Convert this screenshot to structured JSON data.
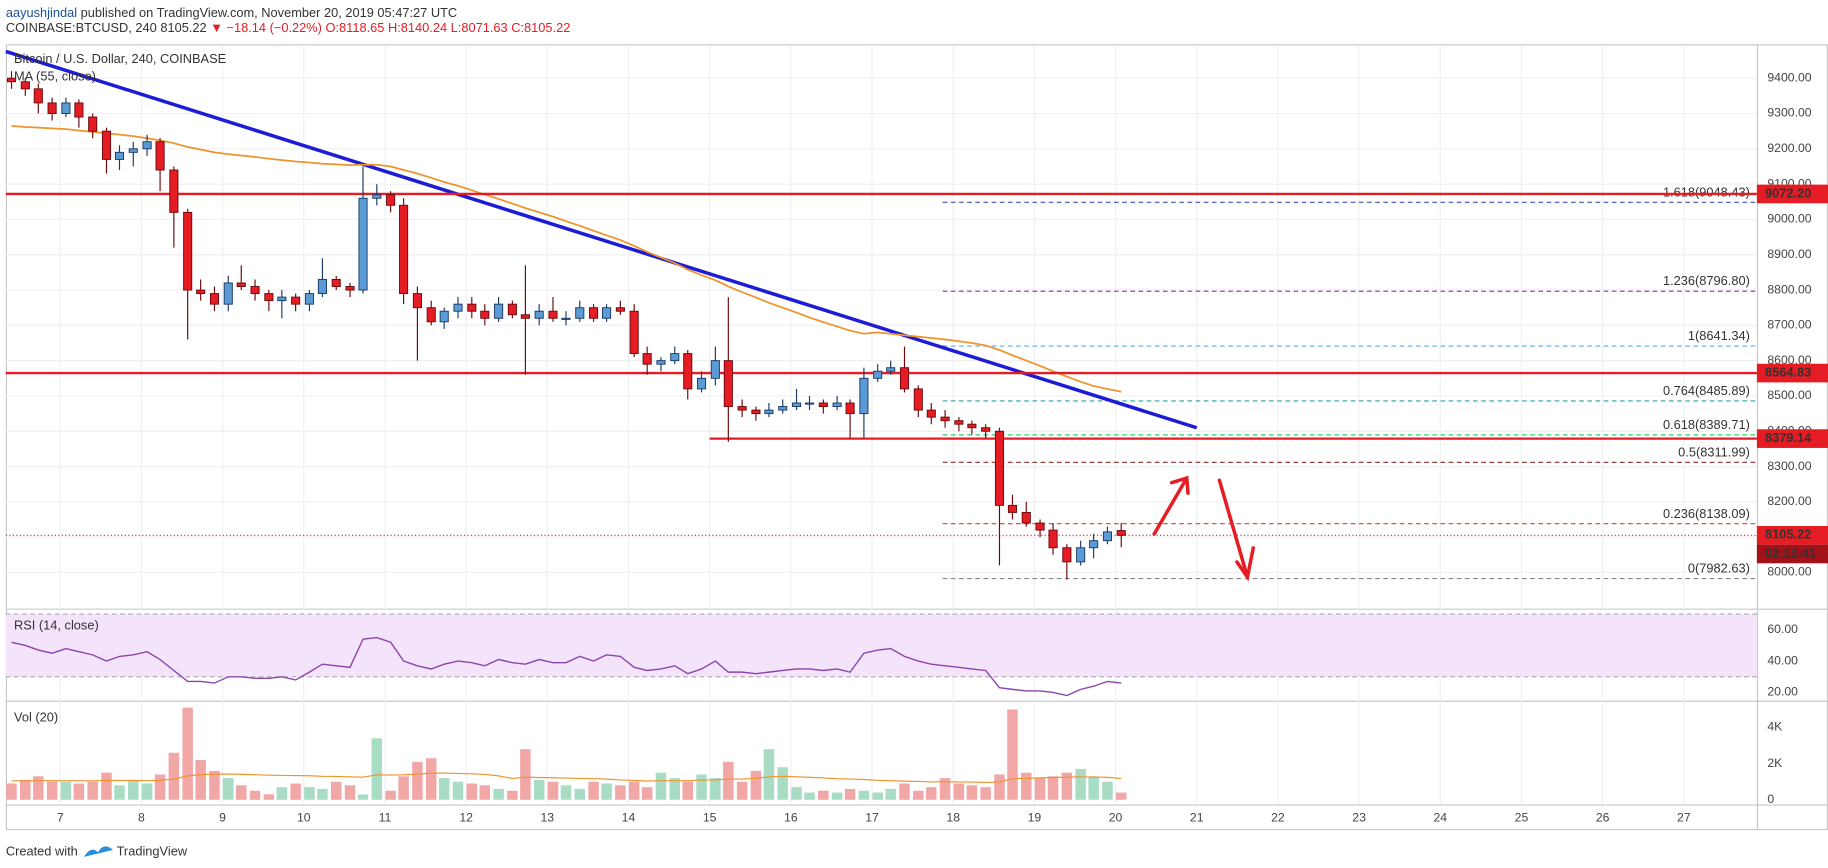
{
  "header": {
    "author": "aayushjindal",
    "published": "published on TradingView.com, November 20, 2019 05:47:27 UTC",
    "symbol": "COINBASE:BTCUSD, 240",
    "price": "8105.22",
    "change": "▼ −18.14 (−0.22%)",
    "ohlc": "O:8118.65 H:8140.24 L:8071.63 C:8105.22"
  },
  "footer": {
    "created": "Created with",
    "brand": "TradingView"
  },
  "chart_data": {
    "type": "candlestick",
    "legend": "Bitcoin / U.S. Dollar, 240, COINBASE",
    "xlim": [
      6.33,
      27.9
    ],
    "xticks": [
      7,
      8,
      9,
      10,
      11,
      12,
      13,
      14,
      15,
      16,
      17,
      18,
      19,
      20,
      21,
      22,
      23,
      24,
      25,
      26,
      27
    ],
    "ylim": [
      7901,
      9496
    ],
    "yticks": [
      {
        "value": 8000,
        "label": "8000.00"
      },
      {
        "value": 8100,
        "label": "8100.00"
      },
      {
        "value": 8200,
        "label": "8200.00"
      },
      {
        "value": 8300,
        "label": "8300.00"
      },
      {
        "value": 8400,
        "label": "8400.00"
      },
      {
        "value": 8500,
        "label": "8500.00"
      },
      {
        "value": 8600,
        "label": "8600.00"
      },
      {
        "value": 8700,
        "label": "8700.00"
      },
      {
        "value": 8800,
        "label": "8800.00"
      },
      {
        "value": 8900,
        "label": "8900.00"
      },
      {
        "value": 9000,
        "label": "9000.00"
      },
      {
        "value": 9100,
        "label": "9100.00"
      },
      {
        "value": 9200,
        "label": "9200.00"
      },
      {
        "value": 9300,
        "label": "9300.00"
      },
      {
        "value": 9400,
        "label": "9400.00"
      }
    ],
    "grid": true,
    "up_color": "#5b9bd5",
    "down_color": "#e51c23",
    "x": [
      6.4,
      6.57,
      6.73,
      6.9,
      7.07,
      7.23,
      7.4,
      7.57,
      7.73,
      7.9,
      8.07,
      8.23,
      8.4,
      8.57,
      8.73,
      8.9,
      9.07,
      9.23,
      9.4,
      9.57,
      9.73,
      9.9,
      10.07,
      10.23,
      10.4,
      10.57,
      10.73,
      10.9,
      11.07,
      11.23,
      11.4,
      11.57,
      11.73,
      11.9,
      12.07,
      12.23,
      12.4,
      12.57,
      12.73,
      12.9,
      13.07,
      13.23,
      13.4,
      13.57,
      13.73,
      13.9,
      14.07,
      14.23,
      14.4,
      14.57,
      14.73,
      14.9,
      15.07,
      15.23,
      15.4,
      15.57,
      15.73,
      15.9,
      16.07,
      16.23,
      16.4,
      16.57,
      16.73,
      16.9,
      17.07,
      17.23,
      17.4,
      17.57,
      17.73,
      17.9,
      18.07,
      18.23,
      18.4,
      18.57,
      18.73,
      18.9,
      19.07,
      19.23,
      19.4,
      19.57,
      19.73,
      19.9,
      20.07
    ],
    "ohlc": [
      [
        9400,
        9420,
        9370,
        9390
      ],
      [
        9390,
        9400,
        9350,
        9370
      ],
      [
        9370,
        9385,
        9300,
        9330
      ],
      [
        9330,
        9345,
        9280,
        9300
      ],
      [
        9300,
        9345,
        9290,
        9330
      ],
      [
        9330,
        9340,
        9260,
        9290
      ],
      [
        9290,
        9300,
        9230,
        9250
      ],
      [
        9250,
        9260,
        9130,
        9170
      ],
      [
        9170,
        9210,
        9140,
        9190
      ],
      [
        9190,
        9220,
        9150,
        9200
      ],
      [
        9200,
        9240,
        9180,
        9220
      ],
      [
        9220,
        9230,
        9080,
        9140
      ],
      [
        9140,
        9150,
        8920,
        9020
      ],
      [
        9020,
        9030,
        8660,
        8800
      ],
      [
        8800,
        8830,
        8770,
        8790
      ],
      [
        8790,
        8810,
        8740,
        8760
      ],
      [
        8760,
        8840,
        8740,
        8820
      ],
      [
        8820,
        8870,
        8800,
        8810
      ],
      [
        8810,
        8830,
        8770,
        8790
      ],
      [
        8790,
        8800,
        8740,
        8770
      ],
      [
        8770,
        8800,
        8720,
        8780
      ],
      [
        8780,
        8790,
        8740,
        8760
      ],
      [
        8760,
        8800,
        8740,
        8790
      ],
      [
        8790,
        8890,
        8780,
        8830
      ],
      [
        8830,
        8840,
        8800,
        8810
      ],
      [
        8810,
        8820,
        8780,
        8800
      ],
      [
        8800,
        9150,
        8790,
        9060
      ],
      [
        9060,
        9100,
        9040,
        9070
      ],
      [
        9070,
        9080,
        9020,
        9040
      ],
      [
        9040,
        9060,
        8760,
        8790
      ],
      [
        8790,
        8810,
        8600,
        8750
      ],
      [
        8750,
        8770,
        8700,
        8710
      ],
      [
        8710,
        8750,
        8690,
        8740
      ],
      [
        8740,
        8780,
        8720,
        8760
      ],
      [
        8760,
        8780,
        8720,
        8740
      ],
      [
        8740,
        8760,
        8700,
        8720
      ],
      [
        8720,
        8780,
        8710,
        8760
      ],
      [
        8760,
        8770,
        8720,
        8730
      ],
      [
        8730,
        8870,
        8560,
        8720
      ],
      [
        8720,
        8760,
        8700,
        8740
      ],
      [
        8740,
        8780,
        8710,
        8720
      ],
      [
        8720,
        8740,
        8700,
        8720
      ],
      [
        8720,
        8770,
        8710,
        8750
      ],
      [
        8750,
        8760,
        8710,
        8720
      ],
      [
        8720,
        8760,
        8710,
        8750
      ],
      [
        8750,
        8770,
        8730,
        8740
      ],
      [
        8740,
        8760,
        8610,
        8620
      ],
      [
        8620,
        8640,
        8560,
        8590
      ],
      [
        8590,
        8610,
        8570,
        8600
      ],
      [
        8600,
        8640,
        8590,
        8620
      ],
      [
        8620,
        8630,
        8490,
        8520
      ],
      [
        8520,
        8570,
        8510,
        8550
      ],
      [
        8550,
        8640,
        8530,
        8600
      ],
      [
        8600,
        8780,
        8370,
        8470
      ],
      [
        8470,
        8490,
        8440,
        8460
      ],
      [
        8460,
        8470,
        8430,
        8450
      ],
      [
        8450,
        8480,
        8440,
        8460
      ],
      [
        8460,
        8490,
        8450,
        8470
      ],
      [
        8470,
        8520,
        8460,
        8480
      ],
      [
        8480,
        8500,
        8460,
        8480
      ],
      [
        8480,
        8490,
        8450,
        8470
      ],
      [
        8470,
        8500,
        8460,
        8480
      ],
      [
        8480,
        8490,
        8380,
        8450
      ],
      [
        8450,
        8580,
        8380,
        8550
      ],
      [
        8550,
        8590,
        8540,
        8570
      ],
      [
        8570,
        8600,
        8560,
        8580
      ],
      [
        8580,
        8640,
        8510,
        8520
      ],
      [
        8520,
        8530,
        8440,
        8460
      ],
      [
        8460,
        8480,
        8420,
        8440
      ],
      [
        8440,
        8460,
        8410,
        8430
      ],
      [
        8430,
        8440,
        8400,
        8420
      ],
      [
        8420,
        8430,
        8390,
        8410
      ],
      [
        8410,
        8420,
        8380,
        8400
      ],
      [
        8400,
        8410,
        8020,
        8190
      ],
      [
        8190,
        8220,
        8150,
        8170
      ],
      [
        8170,
        8200,
        8130,
        8140
      ],
      [
        8140,
        8150,
        8100,
        8120
      ],
      [
        8120,
        8140,
        8050,
        8070
      ],
      [
        8070,
        8080,
        7980,
        8030
      ],
      [
        8030,
        8090,
        8020,
        8070
      ],
      [
        8070,
        8110,
        8040,
        8090
      ],
      [
        8090,
        8130,
        8080,
        8115
      ],
      [
        8118.65,
        8140.24,
        8071.63,
        8105.22
      ]
    ],
    "ma": {
      "name": "MA (55, close)",
      "color": "#f0932b",
      "values": [
        9265,
        9262,
        9260,
        9258,
        9256,
        9252,
        9248,
        9244,
        9240,
        9236,
        9230,
        9224,
        9216,
        9205,
        9198,
        9190,
        9185,
        9181,
        9177,
        9172,
        9168,
        9164,
        9161,
        9158,
        9156,
        9154,
        9155,
        9155,
        9150,
        9140,
        9130,
        9118,
        9106,
        9095,
        9083,
        9070,
        9058,
        9045,
        9032,
        9020,
        9008,
        8995,
        8982,
        8968,
        8955,
        8942,
        8925,
        8908,
        8892,
        8876,
        8858,
        8842,
        8828,
        8810,
        8794,
        8779,
        8764,
        8750,
        8736,
        8722,
        8709,
        8697,
        8685,
        8676,
        8680,
        8676,
        8672,
        8668,
        8664,
        8660,
        8655,
        8650,
        8643,
        8630,
        8615,
        8600,
        8585,
        8570,
        8555,
        8540,
        8528,
        8520,
        8512
      ]
    },
    "trendline": {
      "x": [
        6.33,
        21.0
      ],
      "y": [
        9476,
        8410
      ],
      "color": "#1c1cd6"
    },
    "levels": [
      {
        "value": 9072.2,
        "label": "9072.20",
        "start": 6.33
      },
      {
        "value": 8564.83,
        "label": "8564.83",
        "start": 6.33
      },
      {
        "value": 8379.14,
        "label": "8379.14",
        "start": 15.0
      }
    ],
    "level_color": "#e51c23",
    "last": 8105.22,
    "countdown": "02:12:41",
    "fib_start": 17.87,
    "fib_levels": [
      {
        "label": "1.618(9048.43)",
        "value": 9048.43,
        "color": "#3f51b5"
      },
      {
        "label": "1.236(8796.80)",
        "value": 8796.8,
        "color": "#9c27b0"
      },
      {
        "label": "1(8641.34)",
        "value": 8641.34,
        "color": "#5aa9e6"
      },
      {
        "label": "0.764(8485.89)",
        "value": 8485.89,
        "color": "#26a69a"
      },
      {
        "label": "0.618(8389.71)",
        "value": 8389.71,
        "color": "#2ecc71"
      },
      {
        "label": "0.5(8311.99)",
        "value": 8311.99,
        "color": "#8d2b2b"
      },
      {
        "label": "0.236(8138.09)",
        "value": 8138.09,
        "color": "#e53935"
      },
      {
        "label": "0(7982.63)",
        "value": 7982.63,
        "color": "#888888"
      }
    ],
    "rsi": {
      "name": "RSI (14, close)",
      "color": "#8e44ad",
      "ylim": [
        15.5,
        72
      ],
      "band": [
        30,
        70
      ],
      "yticks": [
        {
          "value": 20,
          "label": "20.00"
        },
        {
          "value": 40,
          "label": "40.00"
        },
        {
          "value": 60,
          "label": "60.00"
        }
      ],
      "values": [
        52,
        50,
        47,
        45,
        48,
        46,
        44,
        40,
        43,
        44,
        46,
        41,
        34,
        27,
        27,
        26,
        30,
        30,
        29,
        29,
        30,
        28,
        33,
        38,
        37,
        36,
        54,
        55,
        52,
        40,
        37,
        35,
        38,
        40,
        39,
        37,
        41,
        39,
        38,
        41,
        39,
        39,
        43,
        40,
        44,
        43,
        36,
        34,
        35,
        37,
        32,
        35,
        40,
        33,
        33,
        32,
        33,
        34,
        35,
        35,
        34,
        35,
        33,
        45,
        47,
        48,
        43,
        40,
        38,
        37,
        36,
        35,
        34,
        23,
        22,
        21,
        21,
        20,
        18,
        22,
        24,
        27,
        26
      ]
    },
    "volume": {
      "name": "Vol (20)",
      "ylim": [
        -258,
        5355
      ],
      "up_color": "#a8dcc4",
      "down_color": "#f2a7a7",
      "ma_color": "#f0932b",
      "yticks": [
        0,
        {
          "value": 2000,
          "label": "2K"
        },
        {
          "value": 4000,
          "label": "4K"
        }
      ],
      "values": [
        900,
        1100,
        1300,
        1000,
        1000,
        900,
        1000,
        1500,
        800,
        1100,
        900,
        1400,
        2600,
        5100,
        2200,
        1600,
        1200,
        800,
        500,
        300,
        700,
        900,
        700,
        600,
        1000,
        800,
        300,
        3400,
        500,
        1300,
        2100,
        2300,
        1200,
        1000,
        900,
        800,
        600,
        500,
        2800,
        1100,
        1000,
        800,
        600,
        1000,
        900,
        800,
        1000,
        700,
        1500,
        1200,
        1000,
        1400,
        1200,
        2100,
        1000,
        1600,
        2800,
        1800,
        700,
        400,
        500,
        400,
        600,
        500,
        400,
        600,
        900,
        500,
        700,
        1200,
        900,
        800,
        700,
        1400,
        5000,
        1500,
        1200,
        1300,
        1500,
        1700,
        1300,
        1000,
        400
      ],
      "ma": [
        1050,
        1050,
        1060,
        1060,
        1060,
        1050,
        1050,
        1080,
        1070,
        1070,
        1060,
        1080,
        1150,
        1320,
        1390,
        1420,
        1420,
        1410,
        1390,
        1360,
        1350,
        1340,
        1330,
        1300,
        1290,
        1270,
        1250,
        1380,
        1370,
        1380,
        1420,
        1470,
        1480,
        1460,
        1440,
        1400,
        1320,
        1180,
        1250,
        1230,
        1220,
        1200,
        1180,
        1170,
        1140,
        1100,
        1070,
        1040,
        1050,
        1060,
        1060,
        1090,
        1100,
        1150,
        1150,
        1190,
        1270,
        1300,
        1270,
        1240,
        1210,
        1170,
        1150,
        1120,
        1080,
        1060,
        1030,
        1010,
        990,
        1000,
        990,
        980,
        960,
        980,
        1170,
        1190,
        1210,
        1230,
        1250,
        1270,
        1260,
        1240,
        1180
      ]
    }
  }
}
